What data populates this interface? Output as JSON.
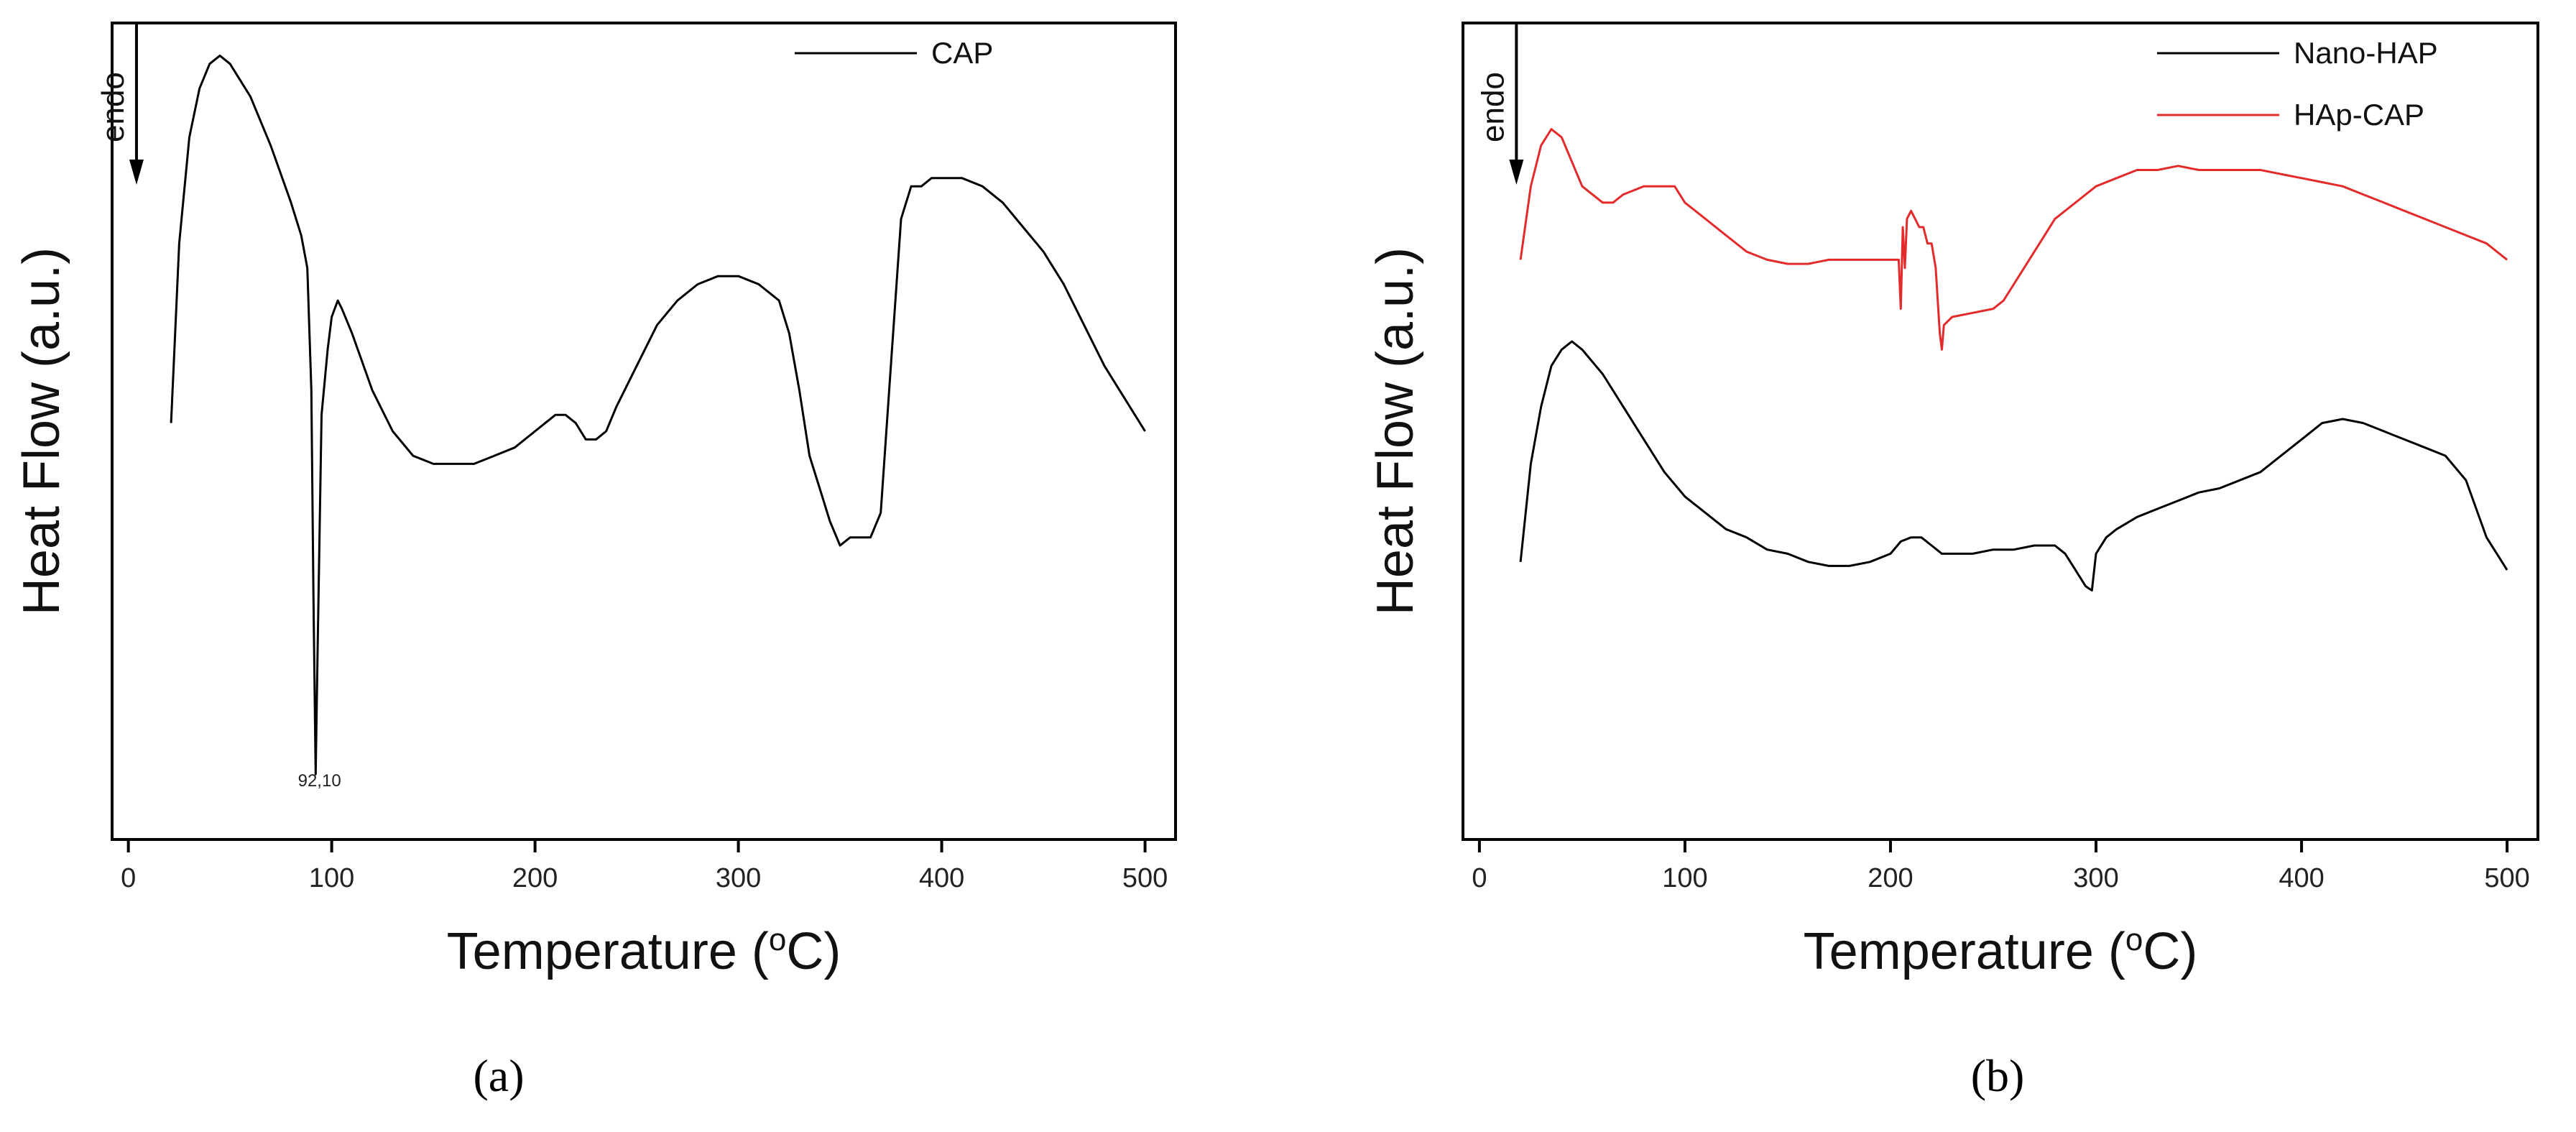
{
  "chart_data": [
    {
      "panel": "a",
      "type": "line",
      "xlabel": "Temperature (°C)",
      "xlabel_prefix": "Temperature (",
      "xlabel_sup": "o",
      "xlabel_suffix": "C)",
      "ylabel": "Heat Flow (a.u.)",
      "xlim": [
        -8,
        515
      ],
      "ylim": [
        0,
        100
      ],
      "xticks": [
        0,
        100,
        200,
        300,
        400,
        500
      ],
      "yticks_shown": false,
      "endo_label": "endo",
      "endo_x": 4,
      "panel_label": "(a)",
      "legend_position": "top-right",
      "annotations": [
        {
          "text": "92,10",
          "x": 94,
          "y": 6.5
        }
      ],
      "series": [
        {
          "name": "CAP",
          "color": "#000000",
          "x": [
            21,
            25,
            30,
            35,
            40,
            45,
            50,
            60,
            70,
            80,
            85,
            88,
            90,
            91,
            92.1,
            93,
            95,
            98,
            100,
            103,
            105,
            110,
            120,
            130,
            140,
            150,
            160,
            170,
            180,
            190,
            200,
            205,
            210,
            215,
            220,
            225,
            230,
            235,
            240,
            250,
            260,
            270,
            280,
            290,
            300,
            310,
            320,
            325,
            330,
            335,
            340,
            345,
            350,
            355,
            360,
            365,
            370,
            375,
            380,
            385,
            390,
            395,
            400,
            410,
            420,
            430,
            440,
            450,
            460,
            470,
            480,
            490,
            500
          ],
          "y": [
            51,
            73,
            86,
            92,
            95,
            96,
            95,
            91,
            85,
            78,
            74,
            70,
            55,
            30,
            8,
            22,
            52,
            60,
            64,
            66,
            65,
            62,
            55,
            50,
            47,
            46,
            46,
            46,
            47,
            48,
            50,
            51,
            52,
            52,
            51,
            49,
            49,
            50,
            53,
            58,
            63,
            66,
            68,
            69,
            69,
            68,
            66,
            62,
            55,
            47,
            43,
            39,
            36,
            37,
            37,
            37,
            40,
            58,
            76,
            80,
            80,
            81,
            81,
            81,
            80,
            78,
            75,
            72,
            68,
            63,
            58,
            54,
            50
          ]
        }
      ]
    },
    {
      "panel": "b",
      "type": "line",
      "xlabel": "Temperature (°C)",
      "xlabel_prefix": "Temperature (",
      "xlabel_sup": "o",
      "xlabel_suffix": "C)",
      "ylabel": "Heat Flow (a.u.)",
      "xlim": [
        -8,
        515
      ],
      "ylim": [
        0,
        100
      ],
      "xticks": [
        0,
        100,
        200,
        300,
        400,
        500
      ],
      "yticks_shown": false,
      "endo_label": "endo",
      "endo_x": 18,
      "panel_label": "(b)",
      "legend_position": "top-right",
      "annotations": [],
      "series": [
        {
          "name": "Nano-HAP",
          "color": "#000000",
          "x": [
            20,
            25,
            30,
            35,
            40,
            45,
            50,
            60,
            70,
            80,
            90,
            100,
            110,
            120,
            130,
            140,
            150,
            160,
            170,
            180,
            190,
            200,
            205,
            210,
            215,
            220,
            225,
            230,
            240,
            250,
            260,
            270,
            280,
            285,
            290,
            295,
            298,
            300,
            305,
            310,
            320,
            330,
            340,
            350,
            360,
            370,
            380,
            390,
            400,
            410,
            420,
            430,
            440,
            450,
            460,
            470,
            480,
            490,
            500
          ],
          "y": [
            34,
            46,
            53,
            58,
            60,
            61,
            60,
            57,
            53,
            49,
            45,
            42,
            40,
            38,
            37,
            35.5,
            35,
            34,
            33.5,
            33.5,
            34,
            35,
            36.5,
            37,
            37,
            36,
            35,
            35,
            35,
            35.5,
            35.5,
            36,
            36,
            35,
            33,
            31,
            30.5,
            35,
            37,
            38,
            39.5,
            40.5,
            41.5,
            42.5,
            43,
            44,
            45,
            47,
            49,
            51,
            51.5,
            51,
            50,
            49,
            48,
            47,
            44,
            37,
            33
          ]
        },
        {
          "name": "HAp-CAP",
          "color": "#e32b2b",
          "x": [
            20,
            25,
            30,
            35,
            40,
            45,
            50,
            55,
            60,
            65,
            70,
            80,
            90,
            95,
            100,
            110,
            120,
            130,
            140,
            150,
            160,
            170,
            180,
            190,
            200,
            204,
            205,
            206,
            207,
            208,
            210,
            212,
            214,
            216,
            218,
            220,
            222,
            224,
            225,
            226,
            230,
            240,
            250,
            255,
            260,
            265,
            270,
            275,
            280,
            290,
            300,
            310,
            320,
            330,
            340,
            350,
            360,
            370,
            380,
            390,
            400,
            410,
            420,
            430,
            440,
            450,
            460,
            470,
            480,
            490,
            500
          ],
          "y": [
            71,
            80,
            85,
            87,
            86,
            83,
            80,
            79,
            78,
            78,
            79,
            80,
            80,
            80,
            78,
            76,
            74,
            72,
            71,
            70.5,
            70.5,
            71,
            71,
            71,
            71,
            71,
            65,
            75,
            70,
            76,
            77,
            76,
            75,
            75,
            73,
            73,
            70,
            62,
            60,
            63,
            64,
            64.5,
            65,
            66,
            68,
            70,
            72,
            74,
            76,
            78,
            80,
            81,
            82,
            82,
            82.5,
            82,
            82,
            82,
            82,
            81.5,
            81,
            80.5,
            80,
            79,
            78,
            77,
            76,
            75,
            74,
            73,
            71
          ]
        }
      ]
    }
  ]
}
